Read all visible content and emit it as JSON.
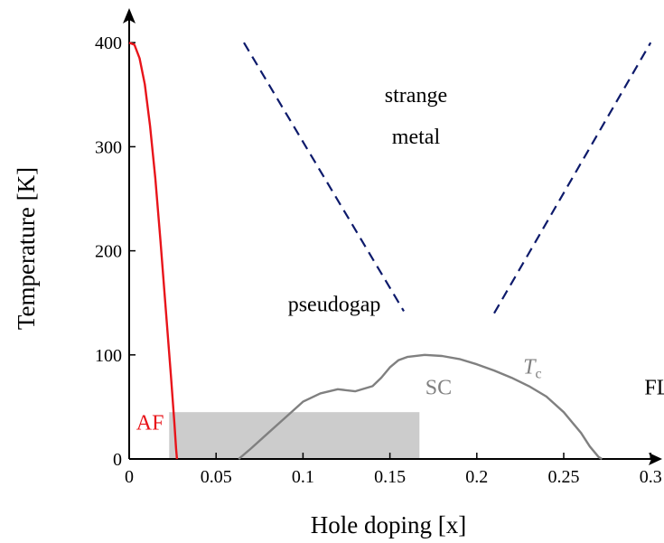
{
  "chart_data": {
    "type": "line",
    "title": "",
    "xlabel": "Hole doping [x]",
    "ylabel": "Temperature [K]",
    "xlim": [
      0,
      0.31
    ],
    "ylim": [
      0,
      410
    ],
    "x_ticks": [
      0,
      0.05,
      0.1,
      0.15,
      0.2,
      0.25,
      0.3
    ],
    "x_tick_labels": [
      "0",
      "0.05",
      "0.1",
      "0.15",
      "0.2",
      "0.25",
      "0.3"
    ],
    "y_ticks": [
      0,
      100,
      200,
      300,
      400
    ],
    "y_tick_labels": [
      "0",
      "100",
      "200",
      "300",
      "400"
    ],
    "grid": false,
    "series": [
      {
        "key": "af",
        "style": "solid",
        "color": "#e8141a",
        "points": [
          [
            0,
            400
          ],
          [
            0.003,
            398
          ],
          [
            0.006,
            385
          ],
          [
            0.009,
            360
          ],
          [
            0.012,
            320
          ],
          [
            0.015,
            270
          ],
          [
            0.018,
            210
          ],
          [
            0.021,
            145
          ],
          [
            0.024,
            80
          ],
          [
            0.026,
            35
          ],
          [
            0.027,
            10
          ],
          [
            0.0275,
            0
          ]
        ]
      },
      {
        "key": "tc",
        "style": "solid",
        "color": "#808080",
        "points": [
          [
            0.063,
            0
          ],
          [
            0.07,
            10
          ],
          [
            0.08,
            25
          ],
          [
            0.09,
            40
          ],
          [
            0.1,
            55
          ],
          [
            0.11,
            63
          ],
          [
            0.12,
            67
          ],
          [
            0.13,
            65
          ],
          [
            0.14,
            70
          ],
          [
            0.145,
            78
          ],
          [
            0.15,
            88
          ],
          [
            0.155,
            95
          ],
          [
            0.16,
            98
          ],
          [
            0.17,
            100
          ],
          [
            0.18,
            99
          ],
          [
            0.19,
            96
          ],
          [
            0.2,
            91
          ],
          [
            0.21,
            85
          ],
          [
            0.22,
            78
          ],
          [
            0.23,
            70
          ],
          [
            0.24,
            60
          ],
          [
            0.25,
            45
          ],
          [
            0.26,
            25
          ],
          [
            0.265,
            12
          ],
          [
            0.27,
            2
          ],
          [
            0.272,
            0
          ]
        ]
      },
      {
        "key": "pseudogap-line",
        "style": "dashed",
        "color": "#0d1a6b",
        "points": [
          [
            0.066,
            400
          ],
          [
            0.158,
            142
          ]
        ]
      },
      {
        "key": "fl-line",
        "style": "dashed",
        "color": "#0d1a6b",
        "points": [
          [
            0.21,
            140
          ],
          [
            0.3,
            400
          ]
        ]
      }
    ],
    "shaded_region": {
      "x": [
        0.023,
        0.167
      ],
      "y": [
        0,
        45
      ],
      "color": "#cccccc"
    },
    "annotations": [
      {
        "key": "strange",
        "text": "strange",
        "x": 0.165,
        "y": 343,
        "color": "#000000"
      },
      {
        "key": "metal",
        "text": "metal",
        "x": 0.165,
        "y": 303,
        "color": "#000000"
      },
      {
        "key": "pseudogap",
        "text": "pseudogap",
        "x": 0.118,
        "y": 142,
        "color": "#000000"
      },
      {
        "key": "sc",
        "text": "SC",
        "x": 0.178,
        "y": 62,
        "color": "#808080"
      },
      {
        "key": "fl",
        "text": "FL (?)",
        "x": 0.312,
        "y": 62,
        "color": "#000000"
      },
      {
        "key": "af-label",
        "text": "AF",
        "x": 0.012,
        "y": 28,
        "color": "#e8141a"
      }
    ],
    "tc_label": {
      "main": "T",
      "sub": "c",
      "x": 0.232,
      "y": 82,
      "color": "#808080"
    }
  }
}
